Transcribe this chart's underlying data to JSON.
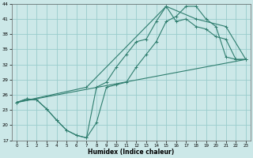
{
  "xlabel": "Humidex (Indice chaleur)",
  "bg_color": "#cce8e8",
  "grid_color": "#99cccc",
  "line_color": "#2e7d6e",
  "xlim": [
    -0.5,
    23.5
  ],
  "ylim": [
    17,
    44
  ],
  "yticks": [
    17,
    20,
    23,
    26,
    29,
    32,
    35,
    38,
    41,
    44
  ],
  "xticks": [
    0,
    1,
    2,
    3,
    4,
    5,
    6,
    7,
    8,
    9,
    10,
    11,
    12,
    13,
    14,
    15,
    16,
    17,
    18,
    19,
    20,
    21,
    22,
    23
  ],
  "line1_x": [
    0,
    1,
    2,
    3,
    4,
    5,
    6,
    7,
    8,
    9,
    10,
    11,
    12,
    13,
    14,
    15,
    16,
    17,
    18,
    19,
    20,
    21,
    22,
    23
  ],
  "line1_y": [
    24.5,
    25.2,
    25.0,
    23.2,
    21.0,
    19.0,
    18.0,
    17.5,
    20.5,
    27.5,
    28.0,
    28.5,
    31.5,
    34.0,
    36.5,
    40.5,
    41.5,
    43.5,
    43.5,
    41.0,
    39.5,
    33.5,
    33.0,
    33.0
  ],
  "line2_x": [
    0,
    23
  ],
  "line2_y": [
    24.5,
    33.0
  ],
  "line3_x": [
    0,
    1,
    2,
    3,
    4,
    5,
    6,
    7,
    8,
    9,
    10,
    11,
    12,
    13,
    14,
    15,
    16,
    17,
    18,
    19,
    20,
    21,
    22,
    23
  ],
  "line3_y": [
    24.5,
    25.2,
    25.0,
    23.2,
    21.0,
    19.0,
    18.0,
    17.5,
    27.5,
    28.5,
    31.5,
    34.0,
    36.5,
    37.0,
    40.5,
    43.5,
    40.5,
    41.0,
    39.5,
    39.0,
    37.5,
    37.0,
    33.0,
    33.0
  ],
  "line4_x": [
    0,
    7,
    15,
    18,
    21,
    23
  ],
  "line4_y": [
    24.5,
    27.5,
    43.5,
    41.0,
    39.5,
    33.0
  ]
}
